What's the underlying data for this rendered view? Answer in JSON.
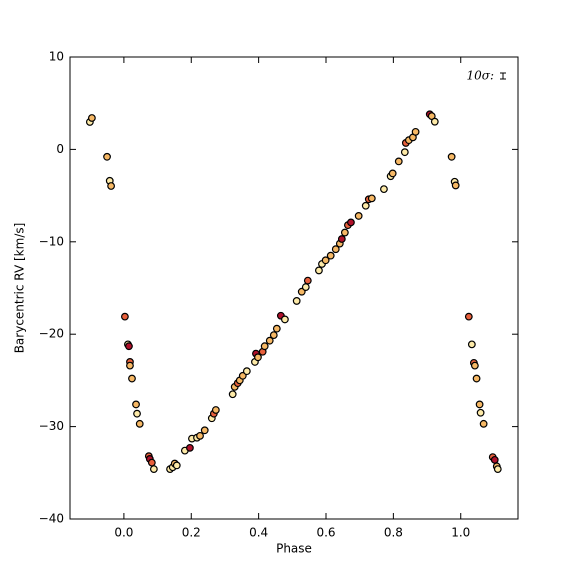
{
  "chart_data": {
    "type": "scatter",
    "xlabel": "Phase",
    "ylabel": "Barycentric RV [km/s]",
    "annotation": "10σ:",
    "xlim": [
      -0.16,
      1.17
    ],
    "ylim": [
      -40,
      10
    ],
    "xticks": [
      {
        "value": 0,
        "label": "0.0"
      },
      0.2,
      0.4,
      0.6,
      0.8,
      {
        "value": 1,
        "label": "1.0"
      }
    ],
    "yticks": [
      {
        "value": -40,
        "label": "−40"
      },
      {
        "value": -30,
        "label": "−30"
      },
      {
        "value": -20,
        "label": "−20"
      },
      {
        "value": -10,
        "label": "−10"
      },
      0,
      10
    ],
    "grid": false,
    "x": [
      -0.101,
      -0.095,
      -0.05,
      -0.042,
      -0.038,
      0.003,
      0.012,
      0.015,
      0.018,
      0.018,
      0.024,
      0.036,
      0.039,
      0.047,
      0.074,
      0.077,
      0.083,
      0.089,
      0.137,
      0.145,
      0.151,
      0.157,
      0.181,
      0.196,
      0.202,
      0.217,
      0.226,
      0.24,
      0.261,
      0.267,
      0.273,
      0.323,
      0.329,
      0.338,
      0.344,
      0.353,
      0.365,
      0.389,
      0.392,
      0.398,
      0.412,
      0.418,
      0.433,
      0.445,
      0.454,
      0.466,
      0.478,
      0.513,
      0.528,
      0.54,
      0.546,
      0.579,
      0.588,
      0.599,
      0.614,
      0.629,
      0.641,
      0.647,
      0.656,
      0.665,
      0.674,
      0.697,
      0.718,
      0.727,
      0.736,
      0.772,
      0.792,
      0.798,
      0.816,
      0.834,
      0.837,
      0.846,
      0.858,
      0.866,
      0.908,
      0.914,
      0.923,
      0.973,
      0.982,
      0.985,
      1.024,
      1.033,
      1.039,
      1.042,
      1.047,
      1.056,
      1.059,
      1.068,
      1.095,
      1.101,
      1.107,
      1.11
    ],
    "values": [
      2.97,
      3.4,
      -0.8,
      -3.4,
      -3.96,
      -18.1,
      -21.1,
      -21.3,
      -23.0,
      -23.4,
      -24.8,
      -27.6,
      -28.6,
      -29.7,
      -33.2,
      -33.5,
      -33.9,
      -34.6,
      -34.6,
      -34.4,
      -34.0,
      -34.2,
      -32.6,
      -32.3,
      -31.3,
      -31.2,
      -31.0,
      -30.4,
      -29.1,
      -28.6,
      -28.2,
      -26.5,
      -25.7,
      -25.3,
      -25.0,
      -24.5,
      -24.0,
      -23.0,
      -22.1,
      -22.5,
      -21.9,
      -21.3,
      -20.7,
      -20.1,
      -19.4,
      -18.0,
      -18.4,
      -16.4,
      -15.4,
      -14.9,
      -14.2,
      -13.1,
      -12.4,
      -12.0,
      -11.5,
      -10.8,
      -10.2,
      -9.7,
      -9.0,
      -8.2,
      -7.9,
      -7.2,
      -6.1,
      -5.4,
      -5.3,
      -4.3,
      -2.9,
      -2.6,
      -1.3,
      -0.3,
      0.7,
      1.0,
      1.3,
      1.9,
      3.8,
      3.6,
      3.0,
      -0.8,
      -3.5,
      -3.9,
      -18.1,
      -21.1,
      -23.1,
      -23.4,
      -24.8,
      -27.6,
      -28.5,
      -29.7,
      -33.3,
      -33.6,
      -34.3,
      -34.6
    ],
    "colors": [
      "#fdeaa8",
      "#f6b865",
      "#f6b865",
      "#fdeaa8",
      "#f6b865",
      "#e8603c",
      "#fdeaa8",
      "#b0102a",
      "#e8603c",
      "#f6b865",
      "#f6b865",
      "#f6b865",
      "#fdeaa8",
      "#f6b865",
      "#e8603c",
      "#b0102a",
      "#e8603c",
      "#fdeaa8",
      "#fdeaa8",
      "#fdeaa8",
      "#f6b865",
      "#fdeaa8",
      "#fdeaa8",
      "#b0102a",
      "#fdeaa8",
      "#fdeaa8",
      "#f6b865",
      "#f6b865",
      "#fdeaa8",
      "#e8603c",
      "#f6b865",
      "#fdeaa8",
      "#f6b865",
      "#e8603c",
      "#f6b865",
      "#f6b865",
      "#fdeaa8",
      "#fdeaa8",
      "#b0102a",
      "#f6b865",
      "#e8603c",
      "#f6b865",
      "#f6b865",
      "#f6b865",
      "#f6b865",
      "#b0102a",
      "#fdeaa8",
      "#fdeaa8",
      "#f6b865",
      "#fdeaa8",
      "#e8603c",
      "#fdeaa8",
      "#fdeaa8",
      "#f6b865",
      "#f6b865",
      "#f6b865",
      "#f6b865",
      "#b0102a",
      "#f6b865",
      "#e8603c",
      "#b0102a",
      "#f6b865",
      "#fdeaa8",
      "#e8603c",
      "#f6b865",
      "#fdeaa8",
      "#fdeaa8",
      "#f6b865",
      "#f6b865",
      "#fdeaa8",
      "#e8603c",
      "#f6b865",
      "#f6b865",
      "#f6b865",
      "#b0102a",
      "#f6b865",
      "#fdeaa8",
      "#f6b865",
      "#fdeaa8",
      "#f6b865",
      "#e8603c",
      "#fdeaa8",
      "#e8603c",
      "#f6b865",
      "#f6b865",
      "#f6b865",
      "#fdeaa8",
      "#f6b865",
      "#e8603c",
      "#b0102a",
      "#f6b865",
      "#fdeaa8"
    ]
  }
}
